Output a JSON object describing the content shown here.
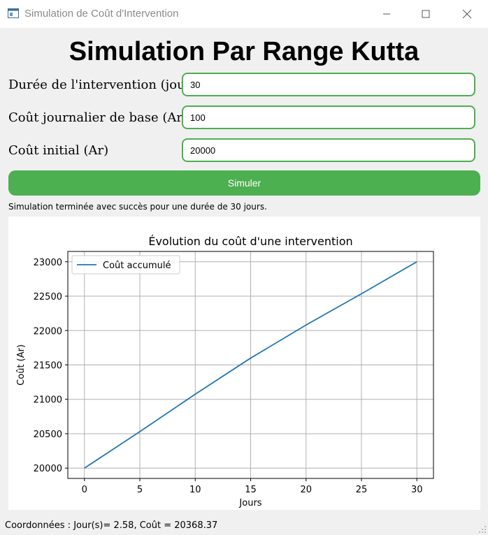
{
  "window": {
    "title": "Simulation de Coût d'Intervention",
    "app_icon": "window-app-icon",
    "controls": [
      "minimize-icon",
      "maximize-icon",
      "close-icon"
    ]
  },
  "heading": "Simulation Par Range Kutta",
  "form": {
    "duration": {
      "label": "Durée de l'intervention (jours)",
      "value": "30"
    },
    "daily_cost": {
      "label": "Coût journalier de base (Ar)",
      "value": "100"
    },
    "initial_cost": {
      "label": "Coût initial (Ar)",
      "value": "20000"
    },
    "submit_label": "Simuler"
  },
  "status": "Simulation terminée avec succès pour une durée de 30 jours.",
  "colors": {
    "accent": "#4caf50",
    "line": "#1f77b4",
    "grid": "#b0b0b0"
  },
  "chart_data": {
    "type": "line",
    "title": "Évolution du coût d'une intervention",
    "xlabel": "Jours",
    "ylabel": "Coût (Ar)",
    "xlim": [
      -1.5,
      31.5
    ],
    "ylim": [
      19850,
      23150
    ],
    "xticks": [
      0,
      5,
      10,
      15,
      20,
      25,
      30
    ],
    "yticks": [
      20000,
      20500,
      21000,
      21500,
      22000,
      22500,
      23000
    ],
    "grid": true,
    "legend_position": "top-left",
    "series": [
      {
        "name": "Coût accumulé",
        "x": [
          0,
          5,
          10,
          15,
          20,
          25,
          30
        ],
        "y": [
          20000,
          20530,
          21075,
          21600,
          22080,
          22535,
          23000
        ]
      }
    ]
  },
  "coordinates_readout": "Coordonnées : Jour(s)= 2.58, Coût = 20368.37"
}
